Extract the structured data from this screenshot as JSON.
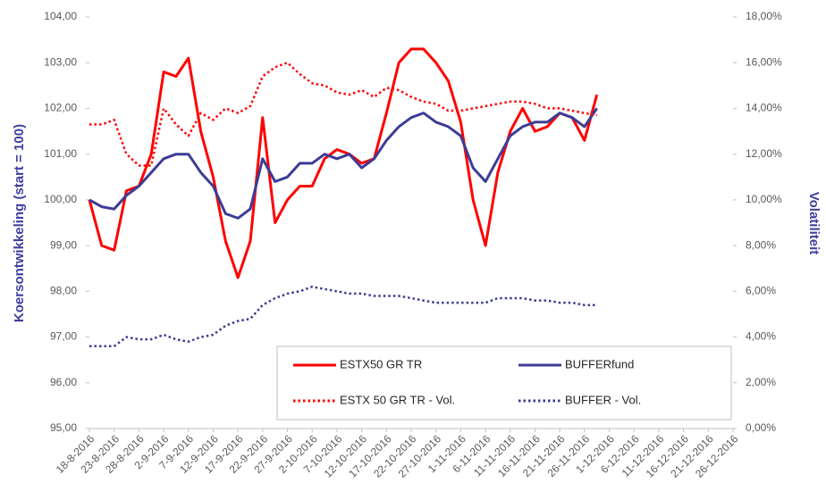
{
  "chart_data": {
    "type": "line",
    "y_label": "Koersontwikkeling (start = 100)",
    "y2_label": "Volatiliteit",
    "categories": [
      "18-8-2016",
      null,
      "23-8-2016",
      null,
      "28-8-2016",
      null,
      "2-9-2016",
      null,
      "7-9-2016",
      null,
      "12-9-2016",
      null,
      "17-9-2016",
      null,
      "22-9-2016",
      null,
      "27-9-2016",
      null,
      "2-10-2016",
      null,
      "7-10-2016",
      null,
      "12-10-2016",
      null,
      "17-10-2016",
      null,
      "22-10-2016",
      null,
      "27-10-2016",
      null,
      "1-11-2016",
      null,
      "6-11-2016",
      null,
      "11-11-2016",
      null,
      "16-11-2016",
      null,
      "21-11-2016",
      null,
      "26-11-2016",
      null,
      "1-12-2016",
      null,
      "6-12-2016",
      null,
      "11-12-2016",
      null,
      "16-12-2016",
      null,
      "21-12-2016",
      null,
      "26-12-2016"
    ],
    "ylim": [
      95,
      104
    ],
    "yticks": [
      {
        "value": 95,
        "label": "95,00"
      },
      {
        "value": 96,
        "label": "96,00"
      },
      {
        "value": 97,
        "label": "97,00"
      },
      {
        "value": 98,
        "label": "98,00"
      },
      {
        "value": 99,
        "label": "99,00"
      },
      {
        "value": 100,
        "label": "100,00"
      },
      {
        "value": 101,
        "label": "101,00"
      },
      {
        "value": 102,
        "label": "102,00"
      },
      {
        "value": 103,
        "label": "103,00"
      },
      {
        "value": 104,
        "label": "104,00"
      }
    ],
    "y2lim": [
      0,
      18
    ],
    "y2ticks": [
      {
        "value": 0,
        "label": "0,00%"
      },
      {
        "value": 2,
        "label": "2,00%"
      },
      {
        "value": 4,
        "label": "4,00%"
      },
      {
        "value": 6,
        "label": "6,00%"
      },
      {
        "value": 8,
        "label": "8,00%"
      },
      {
        "value": 10,
        "label": "10,00%"
      },
      {
        "value": 12,
        "label": "12,00%"
      },
      {
        "value": 14,
        "label": "14,00%"
      },
      {
        "value": 16,
        "label": "16,00%"
      },
      {
        "value": 18,
        "label": "18,00%"
      }
    ],
    "series": [
      {
        "name": "ESTX50 GR TR",
        "color": "#ff0000",
        "linestyle": "solid",
        "values": [
          100.0,
          99.0,
          98.9,
          100.2,
          100.3,
          101.0,
          102.8,
          102.7,
          103.1,
          101.5,
          100.5,
          99.1,
          98.3,
          99.1,
          101.8,
          99.5,
          100.0,
          100.3,
          100.3,
          100.9,
          101.1,
          101.0,
          100.8,
          100.9,
          101.9,
          103.0,
          103.3,
          103.3,
          103.0,
          102.6,
          101.7,
          100.0,
          99.0,
          100.6,
          101.5,
          102.0,
          101.5,
          101.6,
          101.9,
          101.8,
          101.3,
          102.3,
          null,
          null,
          null,
          null,
          null,
          null,
          null,
          null,
          null,
          null,
          null
        ]
      },
      {
        "name": "BUFFERfund",
        "color": "#3c3c96",
        "linestyle": "solid",
        "values": [
          100.0,
          99.85,
          99.8,
          100.1,
          100.3,
          100.6,
          100.9,
          101.0,
          101.0,
          100.6,
          100.3,
          99.7,
          99.6,
          99.8,
          100.9,
          100.4,
          100.5,
          100.8,
          100.8,
          101.0,
          100.9,
          101.0,
          100.7,
          100.9,
          101.3,
          101.6,
          101.8,
          101.9,
          101.7,
          101.6,
          101.4,
          100.7,
          100.4,
          100.9,
          101.4,
          101.6,
          101.7,
          101.7,
          101.9,
          101.8,
          101.6,
          102.0,
          null,
          null,
          null,
          null,
          null,
          null,
          null,
          null,
          null,
          null,
          null
        ]
      },
      {
        "name": "ESTX 50 GR TR - Vol.",
        "color": "#ff0000",
        "linestyle": "dotted",
        "axis": "y2",
        "values": [
          13.3,
          13.3,
          13.5,
          12.0,
          11.5,
          11.5,
          14.0,
          13.3,
          12.8,
          13.8,
          13.5,
          14.0,
          13.8,
          14.1,
          15.4,
          15.8,
          16.0,
          15.5,
          15.1,
          15.0,
          14.7,
          14.6,
          14.8,
          14.5,
          14.9,
          14.8,
          14.5,
          14.3,
          14.2,
          13.9,
          13.9,
          14.0,
          14.1,
          14.2,
          14.3,
          14.3,
          14.2,
          14.0,
          14.0,
          13.9,
          13.8,
          13.7,
          null,
          null,
          null,
          null,
          null,
          null,
          null,
          null,
          null,
          null,
          null
        ]
      },
      {
        "name": "BUFFER - Vol.",
        "color": "#3c3c96",
        "linestyle": "dotted",
        "axis": "y2",
        "values": [
          3.6,
          3.6,
          3.6,
          4.0,
          3.9,
          3.9,
          4.1,
          3.9,
          3.8,
          4.0,
          4.1,
          4.5,
          4.7,
          4.8,
          5.4,
          5.7,
          5.9,
          6.0,
          6.2,
          6.1,
          6.0,
          5.9,
          5.9,
          5.8,
          5.8,
          5.8,
          5.7,
          5.6,
          5.5,
          5.5,
          5.5,
          5.5,
          5.5,
          5.7,
          5.7,
          5.7,
          5.6,
          5.6,
          5.5,
          5.5,
          5.4,
          5.4,
          null,
          null,
          null,
          null,
          null,
          null,
          null,
          null,
          null,
          null,
          null
        ]
      }
    ]
  }
}
